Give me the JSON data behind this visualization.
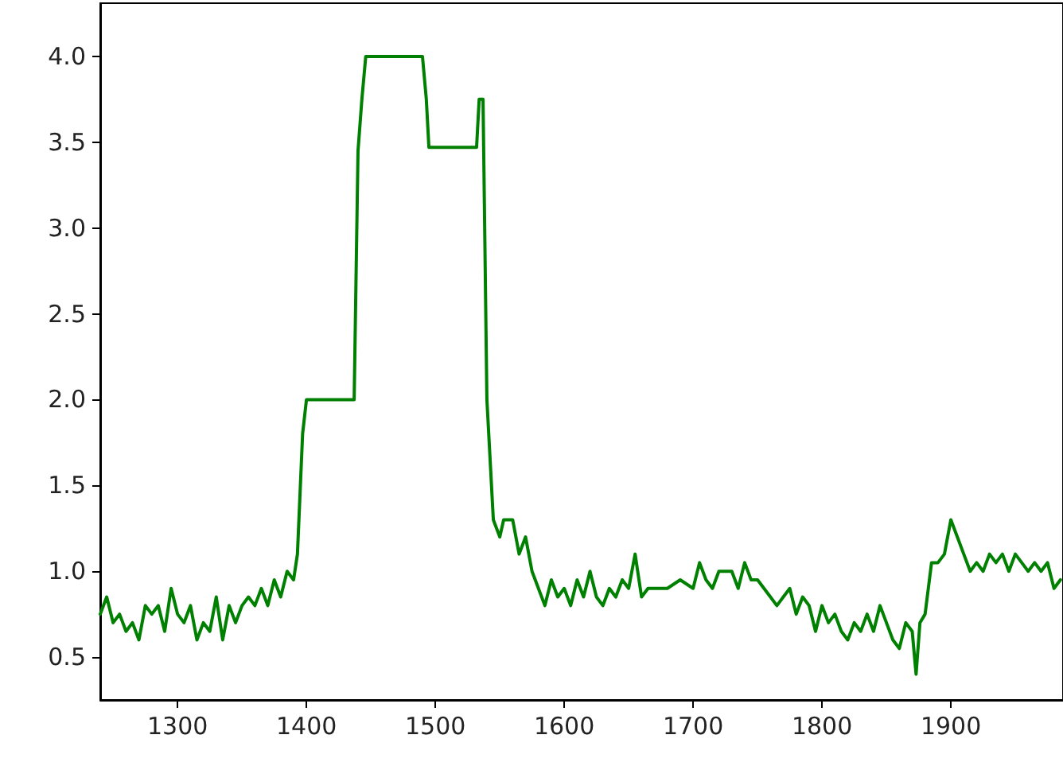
{
  "chart_data": {
    "type": "line",
    "xlim": [
      1240,
      1987
    ],
    "ylim": [
      0.25,
      4.31
    ],
    "xticks": [
      1300,
      1400,
      1500,
      1600,
      1700,
      1800,
      1900
    ],
    "yticks": [
      0.5,
      {
        "value": 1,
        "label": "1.0"
      },
      1.5,
      {
        "value": 2,
        "label": "2.0"
      },
      2.5,
      {
        "value": 3,
        "label": "3.0"
      },
      3.5,
      {
        "value": 4,
        "label": "4.0"
      }
    ],
    "grid": false,
    "marker": "none",
    "line_style": "solid",
    "series": [
      {
        "color": "#008000",
        "x": [
          1240,
          1245,
          1250,
          1255,
          1260,
          1265,
          1270,
          1275,
          1280,
          1285,
          1290,
          1295,
          1300,
          1305,
          1310,
          1315,
          1320,
          1325,
          1330,
          1335,
          1340,
          1345,
          1350,
          1355,
          1360,
          1365,
          1370,
          1375,
          1380,
          1385,
          1390,
          1393,
          1397,
          1400,
          1437,
          1440,
          1443,
          1446,
          1490,
          1493,
          1495,
          1532,
          1534,
          1537,
          1540,
          1545,
          1550,
          1553,
          1560,
          1565,
          1570,
          1575,
          1580,
          1585,
          1590,
          1595,
          1600,
          1605,
          1610,
          1615,
          1620,
          1625,
          1630,
          1635,
          1640,
          1645,
          1650,
          1655,
          1660,
          1665,
          1670,
          1680,
          1690,
          1700,
          1705,
          1710,
          1715,
          1720,
          1730,
          1735,
          1740,
          1745,
          1750,
          1755,
          1760,
          1765,
          1770,
          1775,
          1780,
          1785,
          1790,
          1795,
          1800,
          1805,
          1810,
          1815,
          1820,
          1825,
          1830,
          1835,
          1840,
          1845,
          1850,
          1855,
          1860,
          1865,
          1870,
          1873,
          1876,
          1880,
          1885,
          1890,
          1895,
          1900,
          1905,
          1910,
          1915,
          1920,
          1925,
          1930,
          1935,
          1940,
          1945,
          1950,
          1955,
          1960,
          1965,
          1970,
          1975,
          1980,
          1985
        ],
        "values": [
          0.75,
          0.85,
          0.7,
          0.75,
          0.65,
          0.7,
          0.6,
          0.8,
          0.75,
          0.8,
          0.65,
          0.9,
          0.75,
          0.7,
          0.8,
          0.6,
          0.7,
          0.65,
          0.85,
          0.6,
          0.8,
          0.7,
          0.8,
          0.85,
          0.8,
          0.9,
          0.8,
          0.95,
          0.85,
          1.0,
          0.95,
          1.1,
          1.8,
          2.0,
          2.0,
          3.45,
          3.75,
          4.0,
          4.0,
          3.75,
          3.47,
          3.47,
          3.75,
          3.75,
          2.0,
          1.3,
          1.2,
          1.3,
          1.3,
          1.1,
          1.2,
          1.0,
          0.9,
          0.8,
          0.95,
          0.85,
          0.9,
          0.8,
          0.95,
          0.85,
          1.0,
          0.85,
          0.8,
          0.9,
          0.85,
          0.95,
          0.9,
          1.1,
          0.85,
          0.9,
          0.9,
          0.9,
          0.95,
          0.9,
          1.05,
          0.95,
          0.9,
          1.0,
          1.0,
          0.9,
          1.05,
          0.95,
          0.95,
          0.9,
          0.85,
          0.8,
          0.85,
          0.9,
          0.75,
          0.85,
          0.8,
          0.65,
          0.8,
          0.7,
          0.75,
          0.65,
          0.6,
          0.7,
          0.65,
          0.75,
          0.65,
          0.8,
          0.7,
          0.6,
          0.55,
          0.7,
          0.65,
          0.4,
          0.7,
          0.75,
          1.05,
          1.05,
          1.1,
          1.3,
          1.2,
          1.1,
          1.0,
          1.05,
          1.0,
          1.1,
          1.05,
          1.1,
          1.0,
          1.1,
          1.05,
          1.0,
          1.05,
          1.0,
          1.05,
          0.9,
          0.95
        ]
      }
    ]
  }
}
